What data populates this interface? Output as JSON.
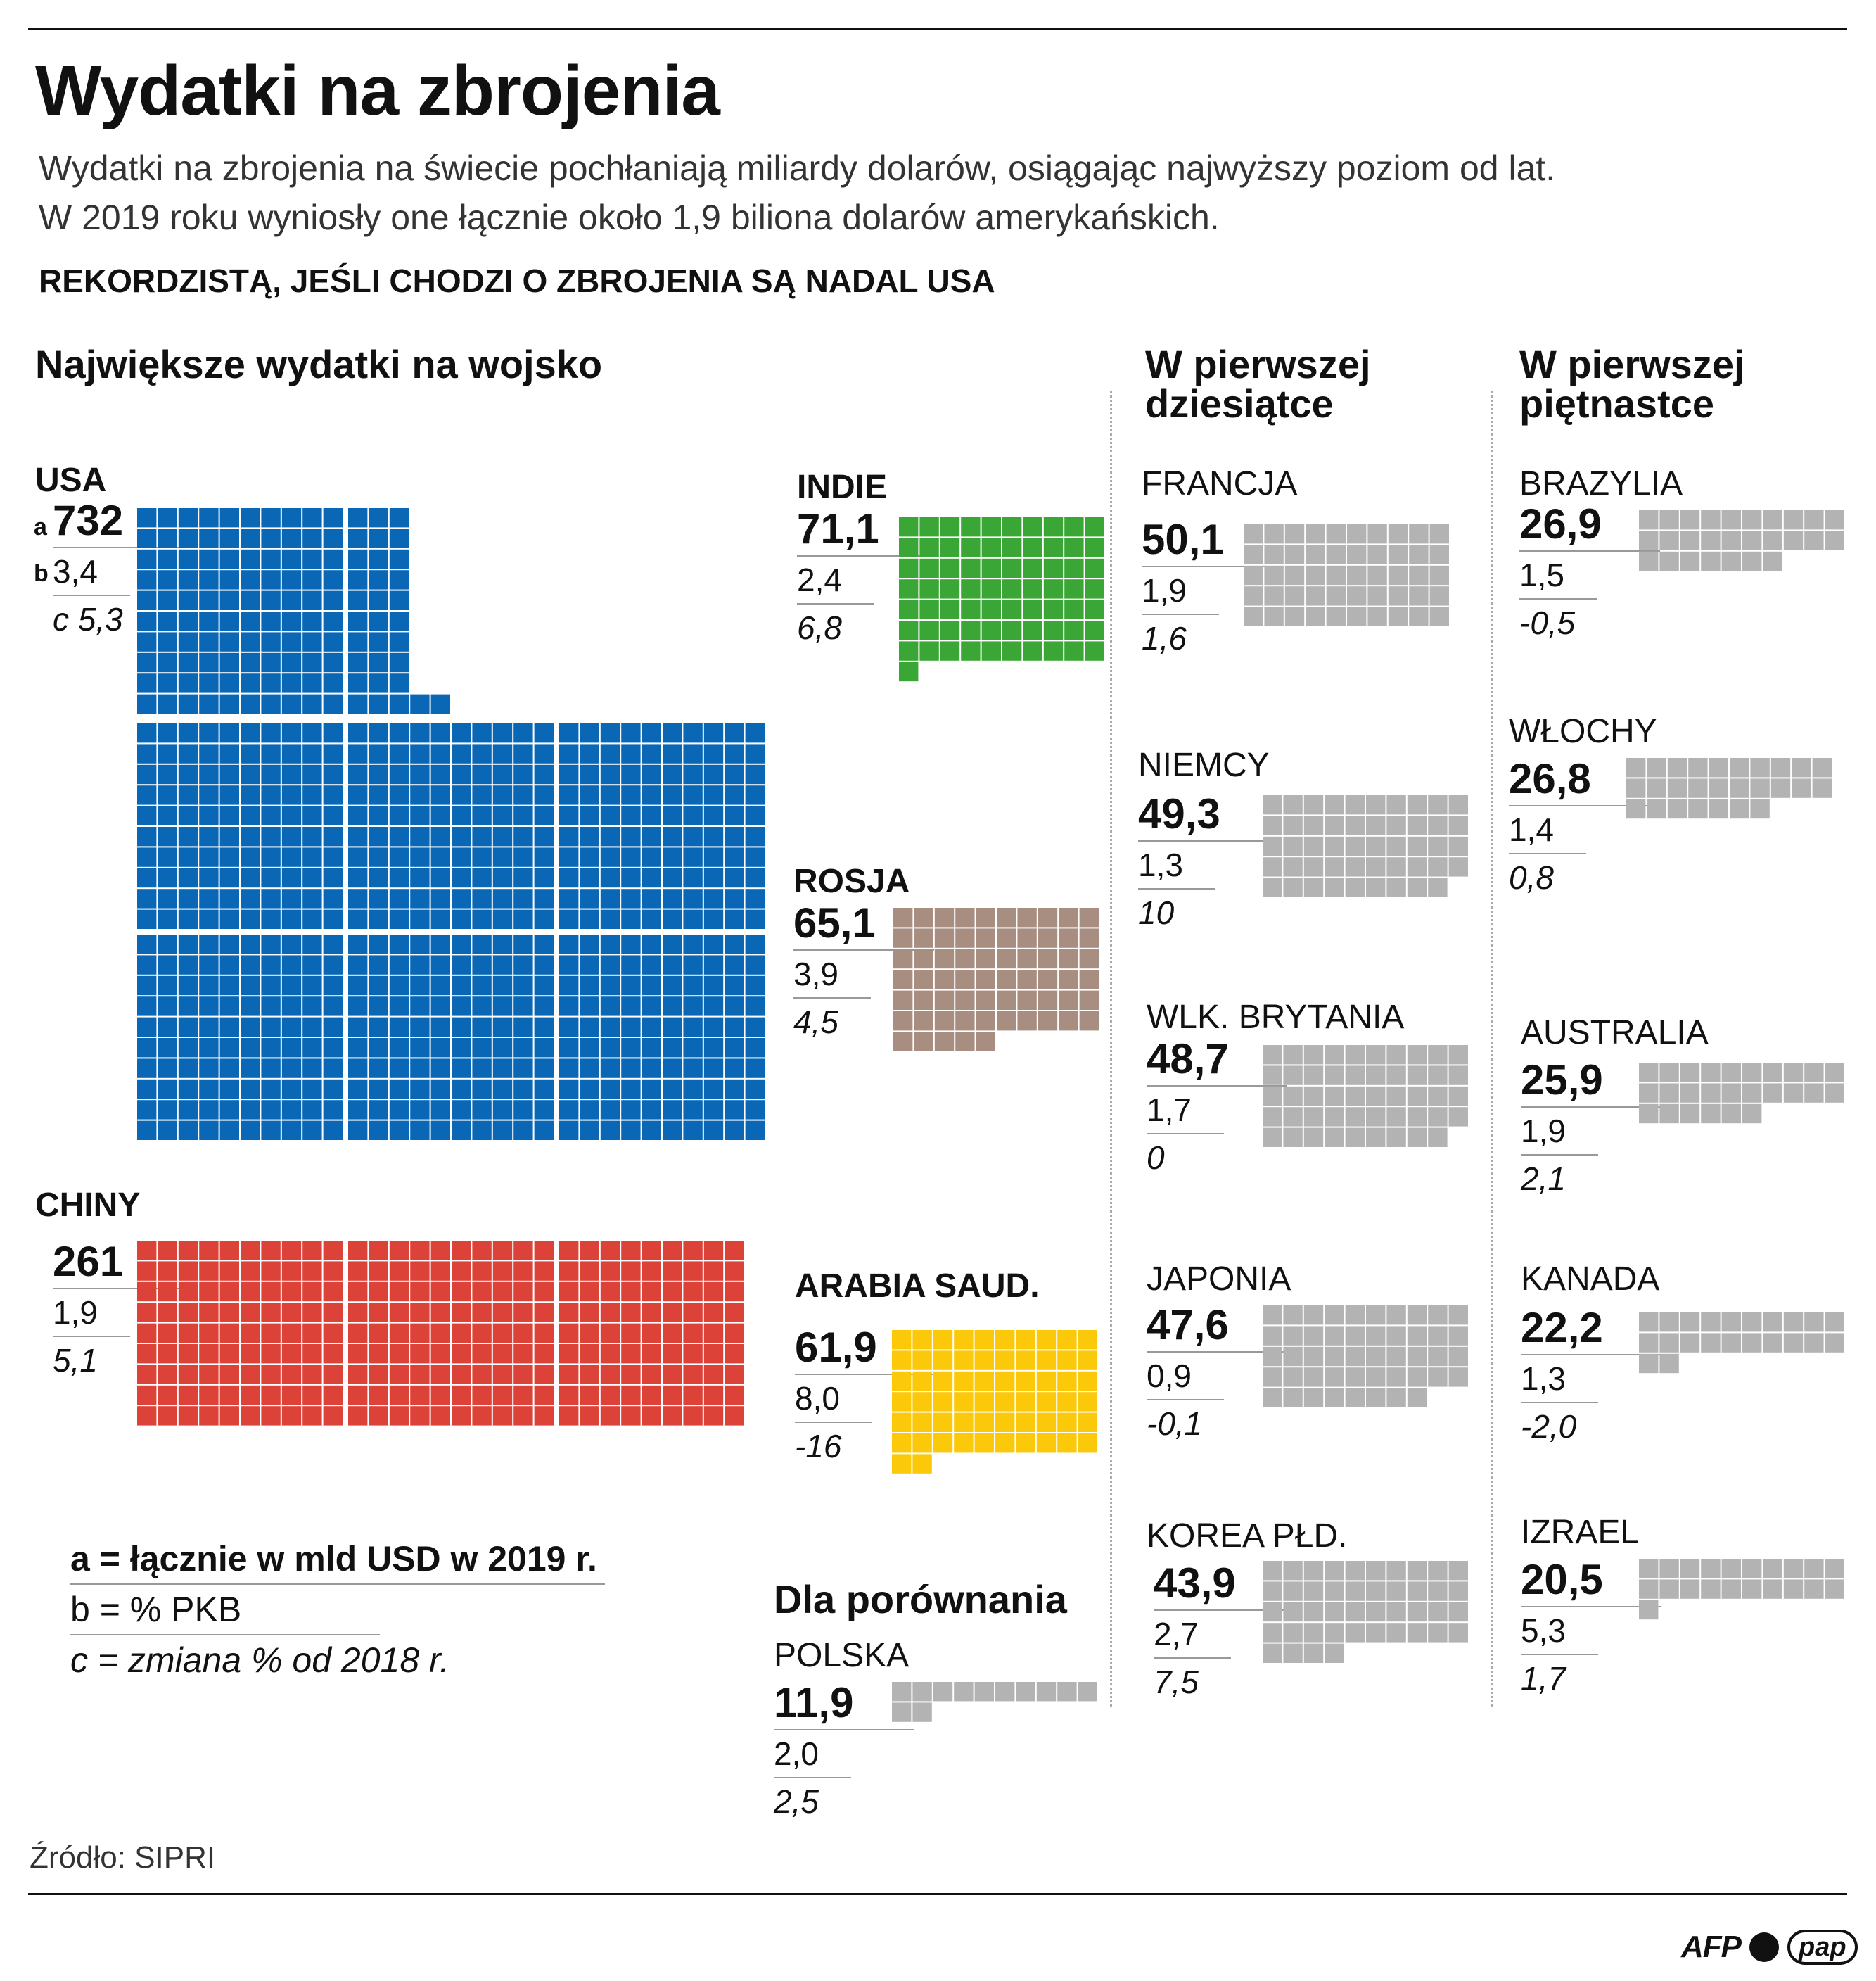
{
  "header": {
    "title": "Wydatki na zbrojenia",
    "intro_line1": "Wydatki na zbrojenia na świecie pochłaniają miliardy dolarów, osiągając najwyższy poziom od lat.",
    "intro_line2": "W 2019 roku wyniosły one łącznie około 1,9 biliona dolarów amerykańskich.",
    "headline": "REKORDZISTĄ, JEŚLI CHODZI O ZBROJENIA SĄ NADAL USA"
  },
  "columns": {
    "col1": "Największe wydatki na wojsko",
    "col2_line1": "W pierwszej",
    "col2_line2": "dziesiątce",
    "col3_line1": "W pierwszej",
    "col3_line2": "piętnastce"
  },
  "legend": {
    "a": "a = łącznie w mld USD w 2019 r.",
    "b": "b = % PKB",
    "c": "c = zmiana % od 2018 r.",
    "a_key": "a",
    "b_key": "b"
  },
  "comparison_label": "Dla porównania",
  "source": "Źródło: SIPRI",
  "logos": {
    "afp": "AFP",
    "pap": "pap"
  },
  "colors": {
    "usa": "#0a67b6",
    "china": "#dc4238",
    "india": "#3aa635",
    "russia": "#a78e81",
    "saudi": "#fbc90a",
    "other": "#b3b3b3"
  },
  "chart_data": {
    "type": "waffle",
    "unit": "1 square = 1 mld USD",
    "countries": [
      {
        "name": "USA",
        "a": "732",
        "b": "3,4",
        "c": "c 5,3",
        "value": 732
      },
      {
        "name": "CHINY",
        "a": "261",
        "b": "1,9",
        "c": "5,1",
        "value": 261
      },
      {
        "name": "INDIE",
        "a": "71,1",
        "b": "2,4",
        "c": "6,8",
        "value": 71.1
      },
      {
        "name": "ROSJA",
        "a": "65,1",
        "b": "3,9",
        "c": "4,5",
        "value": 65.1
      },
      {
        "name": "ARABIA SAUD.",
        "a": "61,9",
        "b": "8,0",
        "c": "-16",
        "value": 61.9
      },
      {
        "name": "POLSKA",
        "a": "11,9",
        "b": "2,0",
        "c": "2,5",
        "value": 11.9
      },
      {
        "name": "FRANCJA",
        "a": "50,1",
        "b": "1,9",
        "c": "1,6",
        "value": 50.1
      },
      {
        "name": "NIEMCY",
        "a": "49,3",
        "b": "1,3",
        "c": "10",
        "value": 49.3
      },
      {
        "name": "WLK. BRYTANIA",
        "a": "48,7",
        "b": "1,7",
        "c": "0",
        "value": 48.7
      },
      {
        "name": "JAPONIA",
        "a": "47,6",
        "b": "0,9",
        "c": "-0,1",
        "value": 47.6
      },
      {
        "name": "KOREA PŁD.",
        "a": "43,9",
        "b": "2,7",
        "c": "7,5",
        "value": 43.9
      },
      {
        "name": "BRAZYLIA",
        "a": "26,9",
        "b": "1,5",
        "c": "-0,5",
        "value": 26.9
      },
      {
        "name": "WŁOCHY",
        "a": "26,8",
        "b": "1,4",
        "c": "0,8",
        "value": 26.8
      },
      {
        "name": "AUSTRALIA",
        "a": "25,9",
        "b": "1,9",
        "c": "2,1",
        "value": 25.9
      },
      {
        "name": "KANADA",
        "a": "22,2",
        "b": "1,3",
        "c": "-2,0",
        "value": 22.2
      },
      {
        "name": "IZRAEL",
        "a": "20,5",
        "b": "5,3",
        "c": "1,7",
        "value": 20.5
      }
    ]
  }
}
